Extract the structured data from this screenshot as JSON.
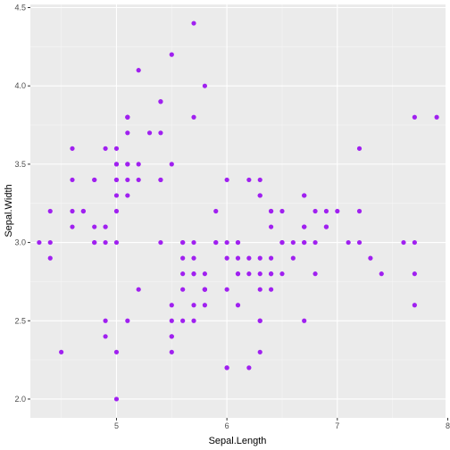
{
  "chart_data": {
    "type": "scatter",
    "xlabel": "Sepal.Length",
    "ylabel": "Sepal.Width",
    "xlim": [
      4.22,
      7.98
    ],
    "ylim": [
      1.88,
      4.52
    ],
    "x_ticks": [
      5,
      6,
      7,
      8
    ],
    "y_ticks": [
      2.0,
      2.5,
      3.0,
      3.5,
      4.0,
      4.5
    ],
    "x_tick_labels": [
      "5",
      "6",
      "7",
      "8"
    ],
    "y_tick_labels": [
      "2.0",
      "2.5",
      "3.0",
      "3.5",
      "4.0",
      "4.5"
    ],
    "grid": true,
    "colors": {
      "point": "#a020f0",
      "panel": "#ebebeb",
      "grid_major": "#ffffff",
      "grid_minor": "#f5f5f5",
      "tick_text": "#4d4d4d"
    },
    "points": [
      [
        5.1,
        3.5
      ],
      [
        4.9,
        3.0
      ],
      [
        4.7,
        3.2
      ],
      [
        4.6,
        3.1
      ],
      [
        5.0,
        3.6
      ],
      [
        5.4,
        3.9
      ],
      [
        4.6,
        3.4
      ],
      [
        5.0,
        3.4
      ],
      [
        4.4,
        2.9
      ],
      [
        4.9,
        3.1
      ],
      [
        5.4,
        3.7
      ],
      [
        4.8,
        3.4
      ],
      [
        4.8,
        3.0
      ],
      [
        4.3,
        3.0
      ],
      [
        5.8,
        4.0
      ],
      [
        5.7,
        4.4
      ],
      [
        5.4,
        3.9
      ],
      [
        5.1,
        3.5
      ],
      [
        5.7,
        3.8
      ],
      [
        5.1,
        3.8
      ],
      [
        5.4,
        3.4
      ],
      [
        5.1,
        3.7
      ],
      [
        4.6,
        3.6
      ],
      [
        5.1,
        3.3
      ],
      [
        4.8,
        3.4
      ],
      [
        5.0,
        3.0
      ],
      [
        5.0,
        3.4
      ],
      [
        5.2,
        3.5
      ],
      [
        5.2,
        3.4
      ],
      [
        4.7,
        3.2
      ],
      [
        4.8,
        3.1
      ],
      [
        5.4,
        3.4
      ],
      [
        5.2,
        4.1
      ],
      [
        5.5,
        4.2
      ],
      [
        4.9,
        3.1
      ],
      [
        5.0,
        3.2
      ],
      [
        5.5,
        3.5
      ],
      [
        4.9,
        3.6
      ],
      [
        4.4,
        3.0
      ],
      [
        5.1,
        3.4
      ],
      [
        5.0,
        3.5
      ],
      [
        4.5,
        2.3
      ],
      [
        4.4,
        3.2
      ],
      [
        5.0,
        3.5
      ],
      [
        5.1,
        3.8
      ],
      [
        4.8,
        3.0
      ],
      [
        5.1,
        3.8
      ],
      [
        4.6,
        3.2
      ],
      [
        5.3,
        3.7
      ],
      [
        5.0,
        3.3
      ],
      [
        7.0,
        3.2
      ],
      [
        6.4,
        3.2
      ],
      [
        6.9,
        3.1
      ],
      [
        5.5,
        2.3
      ],
      [
        6.5,
        2.8
      ],
      [
        5.7,
        2.8
      ],
      [
        6.3,
        3.3
      ],
      [
        4.9,
        2.4
      ],
      [
        6.6,
        2.9
      ],
      [
        5.2,
        2.7
      ],
      [
        5.0,
        2.0
      ],
      [
        5.9,
        3.0
      ],
      [
        6.0,
        2.2
      ],
      [
        6.1,
        2.9
      ],
      [
        5.6,
        2.9
      ],
      [
        6.7,
        3.1
      ],
      [
        5.6,
        3.0
      ],
      [
        5.8,
        2.7
      ],
      [
        6.2,
        2.2
      ],
      [
        5.6,
        2.5
      ],
      [
        5.9,
        3.2
      ],
      [
        6.1,
        2.8
      ],
      [
        6.3,
        2.5
      ],
      [
        6.1,
        2.8
      ],
      [
        6.4,
        2.9
      ],
      [
        6.6,
        3.0
      ],
      [
        6.8,
        2.8
      ],
      [
        6.7,
        3.0
      ],
      [
        6.0,
        2.9
      ],
      [
        5.7,
        2.6
      ],
      [
        5.5,
        2.4
      ],
      [
        5.5,
        2.4
      ],
      [
        5.8,
        2.7
      ],
      [
        6.0,
        2.7
      ],
      [
        5.4,
        3.0
      ],
      [
        6.0,
        3.4
      ],
      [
        6.7,
        3.1
      ],
      [
        6.3,
        2.3
      ],
      [
        5.6,
        3.0
      ],
      [
        5.5,
        2.5
      ],
      [
        5.5,
        2.6
      ],
      [
        6.1,
        3.0
      ],
      [
        5.8,
        2.6
      ],
      [
        5.0,
        2.3
      ],
      [
        5.6,
        2.7
      ],
      [
        5.7,
        3.0
      ],
      [
        5.7,
        2.9
      ],
      [
        6.2,
        2.9
      ],
      [
        5.1,
        2.5
      ],
      [
        5.7,
        2.8
      ],
      [
        6.3,
        3.3
      ],
      [
        5.8,
        2.7
      ],
      [
        7.1,
        3.0
      ],
      [
        6.3,
        2.9
      ],
      [
        6.5,
        3.0
      ],
      [
        7.6,
        3.0
      ],
      [
        4.9,
        2.5
      ],
      [
        7.3,
        2.9
      ],
      [
        6.7,
        2.5
      ],
      [
        7.2,
        3.6
      ],
      [
        6.5,
        3.2
      ],
      [
        6.4,
        2.7
      ],
      [
        6.8,
        3.0
      ],
      [
        5.7,
        2.5
      ],
      [
        5.8,
        2.8
      ],
      [
        6.4,
        3.2
      ],
      [
        6.5,
        3.0
      ],
      [
        7.7,
        3.8
      ],
      [
        7.7,
        2.6
      ],
      [
        6.0,
        2.2
      ],
      [
        6.9,
        3.2
      ],
      [
        5.6,
        2.8
      ],
      [
        7.7,
        2.8
      ],
      [
        6.3,
        2.7
      ],
      [
        6.7,
        3.3
      ],
      [
        7.2,
        3.2
      ],
      [
        6.2,
        2.8
      ],
      [
        6.1,
        3.0
      ],
      [
        6.4,
        2.8
      ],
      [
        7.2,
        3.0
      ],
      [
        7.4,
        2.8
      ],
      [
        7.9,
        3.8
      ],
      [
        6.4,
        2.8
      ],
      [
        6.3,
        2.8
      ],
      [
        6.1,
        2.6
      ],
      [
        7.7,
        3.0
      ],
      [
        6.3,
        3.4
      ],
      [
        6.4,
        3.1
      ],
      [
        6.0,
        3.0
      ],
      [
        6.9,
        3.1
      ],
      [
        6.7,
        3.1
      ],
      [
        6.9,
        3.1
      ],
      [
        5.8,
        2.7
      ],
      [
        6.8,
        3.2
      ],
      [
        6.7,
        3.3
      ],
      [
        6.7,
        3.0
      ],
      [
        6.3,
        2.5
      ],
      [
        6.5,
        3.0
      ],
      [
        6.2,
        3.4
      ],
      [
        5.9,
        3.0
      ]
    ]
  }
}
